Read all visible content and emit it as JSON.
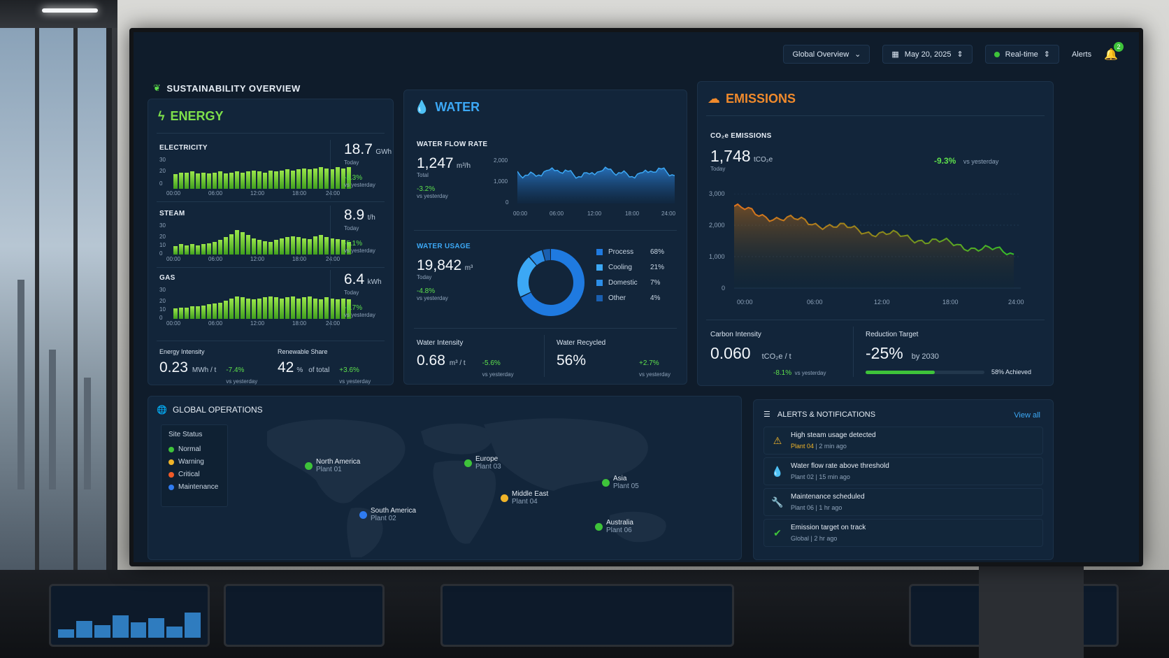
{
  "topbar": {
    "view_select": "Global Overview",
    "date": "May 20, 2025",
    "mode": "Real-time",
    "alerts_label": "Alerts",
    "alerts_count": "2"
  },
  "overview_title": "SUSTAINABILITY OVERVIEW",
  "energy": {
    "title": "ENERGY",
    "metrics": [
      {
        "label": "ELECTRICITY",
        "value": "18.7",
        "unit": "GWh",
        "period": "Today",
        "change": "-8.3%",
        "change_note": "vs yesterday",
        "y_ticks": [
          "30",
          "20",
          "0"
        ],
        "bars": [
          14,
          16,
          16,
          17,
          15,
          16,
          15,
          16,
          17,
          15,
          16,
          17,
          16,
          17,
          18,
          17,
          16,
          18,
          17,
          18,
          19,
          18,
          19,
          20,
          19,
          20,
          21,
          20,
          19,
          21,
          20,
          21
        ]
      },
      {
        "label": "STEAM",
        "value": "8.9",
        "unit": "t/h",
        "period": "Today",
        "change": "-5.1%",
        "change_note": "vs yesterday",
        "y_ticks": [
          "30",
          "20",
          "10",
          "0"
        ],
        "bars": [
          8,
          10,
          9,
          10,
          9,
          10,
          11,
          12,
          14,
          17,
          20,
          24,
          22,
          19,
          16,
          14,
          13,
          12,
          14,
          16,
          17,
          18,
          17,
          16,
          15,
          18,
          19,
          17,
          16,
          15,
          14,
          12
        ]
      },
      {
        "label": "GAS",
        "value": "6.4",
        "unit": "kWh",
        "period": "Today",
        "change": "-6.7%",
        "change_note": "vs yesterday",
        "y_ticks": [
          "30",
          "20",
          "10",
          "0"
        ],
        "bars": [
          10,
          11,
          11,
          12,
          12,
          13,
          14,
          15,
          16,
          18,
          20,
          22,
          21,
          20,
          19,
          20,
          21,
          22,
          21,
          20,
          21,
          22,
          20,
          21,
          22,
          20,
          19,
          21,
          20,
          19,
          20,
          19
        ]
      }
    ],
    "x_ticks": [
      "00:00",
      "06:00",
      "12:00",
      "18:00",
      "24:00"
    ],
    "intensity": {
      "label": "Energy Intensity",
      "value": "0.23",
      "unit": "MWh / t",
      "change": "-7.4%",
      "change_note": "vs yesterday"
    },
    "renewable": {
      "label": "Renewable Share",
      "value": "42",
      "suffix": "%",
      "unit": "of total",
      "change": "+3.6%",
      "change_note": "vs yesterday"
    }
  },
  "water": {
    "title": "WATER",
    "flow": {
      "label": "WATER FLOW RATE",
      "value": "1,247",
      "unit": "m³/h",
      "period": "Total",
      "change": "-3.2%",
      "change_note": "vs yesterday",
      "y_ticks": [
        "2,000",
        "1,000",
        "0"
      ],
      "x_ticks": [
        "00:00",
        "06:00",
        "12:00",
        "18:00",
        "24:00"
      ]
    },
    "usage": {
      "label": "WATER USAGE",
      "value": "19,842",
      "unit": "m³",
      "period": "Today",
      "change": "-4.8%",
      "change_note": "vs yesterday"
    },
    "breakdown": [
      {
        "name": "Process",
        "pct": "68%",
        "value": 68,
        "color": "#1f7ae0"
      },
      {
        "name": "Cooling",
        "pct": "21%",
        "value": 21,
        "color": "#3ca8f5"
      },
      {
        "name": "Domestic",
        "pct": "7%",
        "value": 7,
        "color": "#2c8ee8"
      },
      {
        "name": "Other",
        "pct": "4%",
        "value": 4,
        "color": "#1a5fb0"
      }
    ],
    "intensity": {
      "label": "Water Intensity",
      "value": "0.68",
      "unit": "m³ / t",
      "change": "-5.6%",
      "change_note": "vs yesterday"
    },
    "recycled": {
      "label": "Water Recycled",
      "value": "56%",
      "change": "+2.7%",
      "change_note": "vs yesterday"
    }
  },
  "emissions": {
    "title": "EMISSIONS",
    "co2_label": "CO₂e EMISSIONS",
    "value": "1,748",
    "unit": "tCO₂e",
    "period": "Today",
    "change": "-9.3%",
    "change_note": "vs yesterday",
    "y_ticks": [
      "3,000",
      "2,000",
      "1,000",
      "0"
    ],
    "x_ticks": [
      "00:00",
      "06:00",
      "12:00",
      "18:00",
      "24:00"
    ],
    "carbon_intensity": {
      "label": "Carbon Intensity",
      "value": "0.060",
      "unit": "tCO₂e / t",
      "change": "-8.1%",
      "change_note": "vs yesterday"
    },
    "reduction": {
      "label": "Reduction Target",
      "value": "-25%",
      "note": "by 2030",
      "achieved_label": "58% Achieved",
      "progress": 58
    }
  },
  "operations": {
    "title": "GLOBAL OPERATIONS",
    "legend_title": "Site Status",
    "legend": [
      {
        "name": "Normal",
        "color": "#3ec33a"
      },
      {
        "name": "Warning",
        "color": "#f0b429"
      },
      {
        "name": "Critical",
        "color": "#f05a28"
      },
      {
        "name": "Maintenance",
        "color": "#2f7bf0"
      }
    ],
    "sites": [
      {
        "name": "North America",
        "plant": "Plant 01"
      },
      {
        "name": "South America",
        "plant": "Plant 02"
      },
      {
        "name": "Europe",
        "plant": "Plant 03"
      },
      {
        "name": "Middle East",
        "plant": "Plant 04"
      },
      {
        "name": "Asia",
        "plant": "Plant 05"
      },
      {
        "name": "Australia",
        "plant": "Plant 06"
      }
    ]
  },
  "alerts": {
    "title": "ALERTS & NOTIFICATIONS",
    "view_all": "View all",
    "items": [
      {
        "title": "High steam usage detected",
        "site": "Plant 04",
        "time": "2 min ago"
      },
      {
        "title": "Water flow rate above threshold",
        "site": "Plant 02",
        "time": "15 min ago"
      },
      {
        "title": "Maintenance scheduled",
        "site": "Plant 06",
        "time": "1 hr ago"
      },
      {
        "title": "Emission target on track",
        "site": "Global",
        "time": "2 hr ago"
      }
    ]
  }
}
